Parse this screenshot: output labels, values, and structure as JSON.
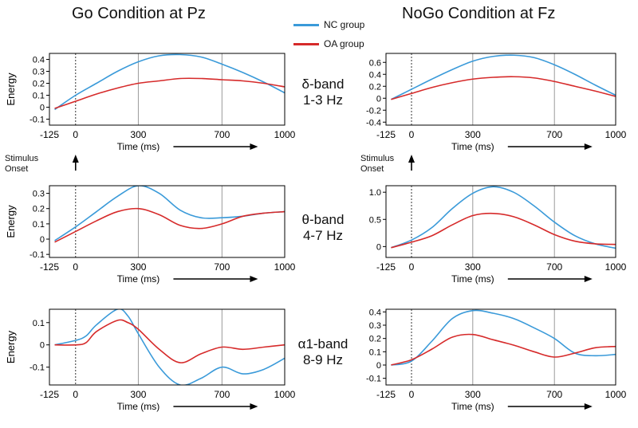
{
  "figure": {
    "left_title": "Go Condition at Pz",
    "right_title": "NoGo Condition at Fz",
    "legend": [
      {
        "label": "NC group",
        "color": "#3a9ad9"
      },
      {
        "label": "OA group",
        "color": "#d62a2a"
      }
    ],
    "bands": [
      {
        "name": "δ-band",
        "range": "1-3 Hz"
      },
      {
        "name": "θ-band",
        "range": "4-7 Hz"
      },
      {
        "name": "α1-band",
        "range": "8-9 Hz"
      }
    ],
    "stimulus_label": [
      "Stimulus",
      "Onset"
    ]
  },
  "chart_data": [
    {
      "type": "line",
      "condition": "Go Condition at Pz",
      "band": "δ-band 1-3 Hz",
      "xlabel": "Time (ms)",
      "ylabel": "Energy",
      "xlim": [
        -125,
        1000
      ],
      "ylim": [
        -0.15,
        0.45
      ],
      "xticks": [
        -125,
        0,
        300,
        700,
        1000
      ],
      "yticks": [
        -0.1,
        0,
        0.1,
        0.2,
        0.3,
        0.4
      ],
      "ytick_labels": [
        "-0.1",
        "0",
        "0.1",
        "0.2",
        "0.3",
        "0.4"
      ],
      "series": [
        {
          "name": "NC group",
          "x": [
            -100,
            0,
            100,
            200,
            300,
            400,
            500,
            600,
            700,
            800,
            900,
            1000
          ],
          "y": [
            -0.02,
            0.1,
            0.2,
            0.3,
            0.38,
            0.43,
            0.44,
            0.42,
            0.36,
            0.29,
            0.21,
            0.12
          ]
        },
        {
          "name": "OA group",
          "x": [
            -100,
            0,
            100,
            200,
            300,
            400,
            500,
            600,
            700,
            800,
            900,
            1000
          ],
          "y": [
            -0.01,
            0.05,
            0.11,
            0.16,
            0.2,
            0.22,
            0.24,
            0.24,
            0.23,
            0.22,
            0.2,
            0.17
          ]
        }
      ]
    },
    {
      "type": "line",
      "condition": "NoGo Condition at Fz",
      "band": "δ-band 1-3 Hz",
      "xlabel": "Time (ms)",
      "ylabel": "",
      "xlim": [
        -125,
        1000
      ],
      "ylim": [
        -0.45,
        0.75
      ],
      "xticks": [
        -125,
        0,
        300,
        700,
        1000
      ],
      "yticks": [
        -0.4,
        -0.2,
        0,
        0.2,
        0.4,
        0.6
      ],
      "ytick_labels": [
        "-0.4",
        "-0.2",
        "0",
        "0.2",
        "0.4",
        "0.6"
      ],
      "series": [
        {
          "name": "NC group",
          "x": [
            -100,
            0,
            100,
            200,
            300,
            400,
            500,
            600,
            700,
            800,
            900,
            1000
          ],
          "y": [
            -0.02,
            0.15,
            0.32,
            0.48,
            0.62,
            0.7,
            0.72,
            0.68,
            0.56,
            0.4,
            0.22,
            0.05
          ]
        },
        {
          "name": "OA group",
          "x": [
            -100,
            0,
            100,
            200,
            300,
            400,
            500,
            600,
            700,
            800,
            900,
            1000
          ],
          "y": [
            -0.02,
            0.08,
            0.18,
            0.26,
            0.32,
            0.35,
            0.36,
            0.34,
            0.28,
            0.2,
            0.12,
            0.03
          ]
        }
      ]
    },
    {
      "type": "line",
      "condition": "Go Condition at Pz",
      "band": "θ-band 4-7 Hz",
      "xlabel": "Time (ms)",
      "ylabel": "Energy",
      "xlim": [
        -125,
        1000
      ],
      "ylim": [
        -0.12,
        0.35
      ],
      "xticks": [
        -125,
        0,
        300,
        700,
        1000
      ],
      "yticks": [
        -0.1,
        0,
        0.1,
        0.2,
        0.3
      ],
      "ytick_labels": [
        "-0.1",
        "0",
        "0.1",
        "0.2",
        "0.3"
      ],
      "series": [
        {
          "name": "NC group",
          "x": [
            -100,
            0,
            100,
            200,
            300,
            400,
            500,
            600,
            700,
            800,
            900,
            1000
          ],
          "y": [
            -0.01,
            0.08,
            0.18,
            0.28,
            0.35,
            0.3,
            0.19,
            0.14,
            0.14,
            0.15,
            0.17,
            0.18
          ]
        },
        {
          "name": "OA group",
          "x": [
            -100,
            0,
            100,
            200,
            300,
            400,
            500,
            600,
            700,
            800,
            900,
            1000
          ],
          "y": [
            -0.02,
            0.05,
            0.12,
            0.18,
            0.2,
            0.16,
            0.09,
            0.07,
            0.1,
            0.15,
            0.17,
            0.18
          ]
        }
      ]
    },
    {
      "type": "line",
      "condition": "NoGo Condition at Fz",
      "band": "θ-band 4-7 Hz",
      "xlabel": "Time (ms)",
      "ylabel": "",
      "xlim": [
        -125,
        1000
      ],
      "ylim": [
        -0.2,
        1.12
      ],
      "xticks": [
        -125,
        0,
        300,
        700,
        1000
      ],
      "yticks": [
        0,
        0.5,
        1.0
      ],
      "ytick_labels": [
        "0",
        "0.5",
        "1.0"
      ],
      "series": [
        {
          "name": "NC group",
          "x": [
            -100,
            0,
            100,
            200,
            300,
            400,
            500,
            600,
            700,
            800,
            900,
            1000
          ],
          "y": [
            -0.02,
            0.12,
            0.35,
            0.7,
            0.98,
            1.1,
            1.0,
            0.75,
            0.45,
            0.2,
            0.05,
            -0.03
          ]
        },
        {
          "name": "OA group",
          "x": [
            -100,
            0,
            100,
            200,
            300,
            400,
            500,
            600,
            700,
            800,
            900,
            1000
          ],
          "y": [
            -0.02,
            0.08,
            0.2,
            0.4,
            0.57,
            0.61,
            0.55,
            0.4,
            0.22,
            0.1,
            0.05,
            0.04
          ]
        }
      ]
    },
    {
      "type": "line",
      "condition": "Go Condition at Pz",
      "band": "α1-band 8-9 Hz",
      "xlabel": "Time (ms)",
      "ylabel": "Energy",
      "xlim": [
        -125,
        1000
      ],
      "ylim": [
        -0.18,
        0.16
      ],
      "xticks": [
        -125,
        0,
        300,
        700,
        1000
      ],
      "yticks": [
        -0.1,
        0,
        0.1
      ],
      "ytick_labels": [
        "-0.1",
        "0",
        "0.1"
      ],
      "series": [
        {
          "name": "NC group",
          "x": [
            -100,
            0,
            50,
            100,
            200,
            250,
            300,
            400,
            500,
            600,
            700,
            800,
            900,
            1000
          ],
          "y": [
            0.0,
            0.02,
            0.04,
            0.09,
            0.16,
            0.13,
            0.05,
            -0.1,
            -0.18,
            -0.15,
            -0.1,
            -0.13,
            -0.11,
            -0.06
          ]
        },
        {
          "name": "OA group",
          "x": [
            -100,
            0,
            50,
            100,
            200,
            250,
            300,
            400,
            500,
            600,
            700,
            800,
            900,
            1000
          ],
          "y": [
            0.0,
            0.0,
            0.01,
            0.06,
            0.11,
            0.1,
            0.07,
            -0.02,
            -0.08,
            -0.04,
            -0.01,
            -0.02,
            -0.01,
            0.0
          ]
        }
      ]
    },
    {
      "type": "line",
      "condition": "NoGo Condition at Fz",
      "band": "α1-band 8-9 Hz",
      "xlabel": "Time (ms)",
      "ylabel": "",
      "xlim": [
        -125,
        1000
      ],
      "ylim": [
        -0.15,
        0.42
      ],
      "xticks": [
        -125,
        0,
        300,
        700,
        1000
      ],
      "yticks": [
        -0.1,
        0,
        0.1,
        0.2,
        0.3,
        0.4
      ],
      "ytick_labels": [
        "-0.1",
        "0",
        "0.1",
        "0.2",
        "0.3",
        "0.4"
      ],
      "series": [
        {
          "name": "NC group",
          "x": [
            -100,
            0,
            100,
            200,
            300,
            400,
            500,
            600,
            700,
            800,
            900,
            1000
          ],
          "y": [
            0.0,
            0.03,
            0.18,
            0.35,
            0.41,
            0.39,
            0.35,
            0.28,
            0.2,
            0.09,
            0.07,
            0.08
          ]
        },
        {
          "name": "OA group",
          "x": [
            -100,
            0,
            100,
            200,
            300,
            400,
            500,
            600,
            700,
            800,
            900,
            1000
          ],
          "y": [
            0.0,
            0.04,
            0.12,
            0.21,
            0.23,
            0.19,
            0.15,
            0.1,
            0.06,
            0.09,
            0.13,
            0.14
          ]
        }
      ]
    }
  ]
}
